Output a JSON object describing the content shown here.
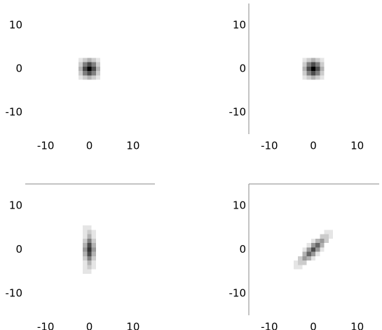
{
  "chart_data": [
    {
      "type": "heatmap",
      "color": "#000000",
      "spines": [],
      "x": [
        -5,
        -4,
        -3,
        -2,
        -1,
        0,
        1,
        2,
        3,
        4,
        5
      ],
      "y": [
        -5,
        -4,
        -3,
        -2,
        -1,
        0,
        1,
        2,
        3,
        4,
        5
      ],
      "z": [
        [
          0,
          0,
          0,
          0,
          0,
          0,
          0,
          0,
          0,
          0,
          0
        ],
        [
          0,
          0,
          0,
          0,
          0,
          0,
          0,
          0,
          0,
          0,
          0
        ],
        [
          0,
          0,
          0,
          0,
          0,
          0,
          0,
          0,
          0,
          0,
          0
        ],
        [
          0,
          0,
          0,
          0.1,
          0.2,
          0.3,
          0.2,
          0.1,
          0,
          0,
          0
        ],
        [
          0,
          0,
          0,
          0.2,
          0.5,
          0.7,
          0.5,
          0.2,
          0,
          0,
          0
        ],
        [
          0,
          0,
          0,
          0.3,
          0.7,
          1,
          0.7,
          0.3,
          0,
          0,
          0
        ],
        [
          0,
          0,
          0,
          0.2,
          0.5,
          0.7,
          0.5,
          0.2,
          0,
          0,
          0
        ],
        [
          0,
          0,
          0,
          0.1,
          0.2,
          0.3,
          0.2,
          0.1,
          0,
          0,
          0
        ],
        [
          0,
          0,
          0,
          0,
          0,
          0,
          0,
          0,
          0,
          0,
          0
        ],
        [
          0,
          0,
          0,
          0,
          0,
          0,
          0,
          0,
          0,
          0,
          0
        ],
        [
          0,
          0,
          0,
          0,
          0,
          0,
          0,
          0,
          0,
          0,
          0
        ]
      ],
      "xlim": [
        -15,
        15
      ],
      "ylim": [
        -15,
        15
      ],
      "xticks": [
        -10,
        0,
        10
      ],
      "yticks": [
        -10,
        0,
        10
      ]
    },
    {
      "type": "heatmap",
      "color": "#000000",
      "spines": [
        "left"
      ],
      "x": [
        -5,
        -4,
        -3,
        -2,
        -1,
        0,
        1,
        2,
        3,
        4,
        5
      ],
      "y": [
        -5,
        -4,
        -3,
        -2,
        -1,
        0,
        1,
        2,
        3,
        4,
        5
      ],
      "z": [
        [
          0,
          0,
          0,
          0,
          0,
          0,
          0,
          0,
          0,
          0,
          0
        ],
        [
          0,
          0,
          0,
          0,
          0,
          0,
          0,
          0,
          0,
          0,
          0
        ],
        [
          0,
          0,
          0,
          0,
          0,
          0,
          0,
          0,
          0,
          0,
          0
        ],
        [
          0,
          0,
          0,
          0.1,
          0.2,
          0.3,
          0.2,
          0.1,
          0,
          0,
          0
        ],
        [
          0,
          0,
          0,
          0.2,
          0.5,
          0.7,
          0.5,
          0.2,
          0,
          0,
          0
        ],
        [
          0,
          0,
          0,
          0.3,
          0.7,
          1,
          0.7,
          0.3,
          0,
          0,
          0
        ],
        [
          0,
          0,
          0,
          0.2,
          0.5,
          0.7,
          0.5,
          0.2,
          0,
          0,
          0
        ],
        [
          0,
          0,
          0,
          0.1,
          0.2,
          0.3,
          0.2,
          0.1,
          0,
          0,
          0
        ],
        [
          0,
          0,
          0,
          0,
          0,
          0,
          0,
          0,
          0,
          0,
          0
        ],
        [
          0,
          0,
          0,
          0,
          0,
          0,
          0,
          0,
          0,
          0,
          0
        ],
        [
          0,
          0,
          0,
          0,
          0,
          0,
          0,
          0,
          0,
          0,
          0
        ]
      ],
      "xlim": [
        -15,
        15
      ],
      "ylim": [
        -15,
        15
      ],
      "xticks": [
        -10,
        0,
        10
      ],
      "yticks": [
        -10,
        0,
        10
      ]
    },
    {
      "type": "heatmap",
      "color": "#000000",
      "spines": [
        "top"
      ],
      "x": [
        -5,
        -4,
        -3,
        -2,
        -1,
        0,
        1,
        2,
        3,
        4,
        5
      ],
      "y": [
        -5,
        -4,
        -3,
        -2,
        -1,
        0,
        1,
        2,
        3,
        4,
        5
      ],
      "z": [
        [
          0,
          0,
          0,
          0,
          0.1,
          0.1,
          0,
          0,
          0,
          0,
          0
        ],
        [
          0,
          0,
          0,
          0,
          0.1,
          0.2,
          0.1,
          0,
          0,
          0,
          0
        ],
        [
          0,
          0,
          0,
          0,
          0.1,
          0.3,
          0.1,
          0,
          0,
          0,
          0
        ],
        [
          0,
          0,
          0,
          0,
          0.2,
          0.5,
          0.2,
          0,
          0,
          0,
          0
        ],
        [
          0,
          0,
          0,
          0,
          0.3,
          0.7,
          0.3,
          0,
          0,
          0,
          0
        ],
        [
          0,
          0,
          0,
          0,
          0.4,
          0.8,
          0.4,
          0,
          0,
          0,
          0
        ],
        [
          0,
          0,
          0,
          0,
          0.3,
          0.7,
          0.3,
          0,
          0,
          0,
          0
        ],
        [
          0,
          0,
          0,
          0,
          0.2,
          0.5,
          0.2,
          0,
          0,
          0,
          0
        ],
        [
          0,
          0,
          0,
          0,
          0.1,
          0.3,
          0.1,
          0,
          0,
          0,
          0
        ],
        [
          0,
          0,
          0,
          0,
          0.1,
          0.2,
          0.1,
          0,
          0,
          0,
          0
        ],
        [
          0,
          0,
          0,
          0,
          0.1,
          0.1,
          0,
          0,
          0,
          0,
          0
        ]
      ],
      "xlim": [
        -15,
        15
      ],
      "ylim": [
        -15,
        15
      ],
      "xticks": [
        -10,
        0,
        10
      ],
      "yticks": [
        -10,
        0,
        10
      ]
    },
    {
      "type": "heatmap",
      "color": "#000000",
      "spines": [
        "top",
        "left"
      ],
      "x": [
        -5,
        -4,
        -3,
        -2,
        -1,
        0,
        1,
        2,
        3,
        4,
        5
      ],
      "y": [
        -5,
        -4,
        -3,
        -2,
        -1,
        0,
        1,
        2,
        3,
        4,
        5
      ],
      "z": [
        [
          0,
          0,
          0,
          0,
          0,
          0,
          0,
          0,
          0,
          0,
          0
        ],
        [
          0,
          0.1,
          0.1,
          0,
          0,
          0,
          0,
          0,
          0,
          0,
          0
        ],
        [
          0,
          0.1,
          0.2,
          0.2,
          0,
          0,
          0,
          0,
          0,
          0,
          0
        ],
        [
          0,
          0,
          0.2,
          0.4,
          0.3,
          0.1,
          0,
          0,
          0,
          0,
          0
        ],
        [
          0,
          0,
          0,
          0.3,
          0.6,
          0.4,
          0.1,
          0,
          0,
          0,
          0
        ],
        [
          0,
          0,
          0,
          0.1,
          0.4,
          0.7,
          0.4,
          0.1,
          0,
          0,
          0
        ],
        [
          0,
          0,
          0,
          0,
          0.1,
          0.4,
          0.6,
          0.3,
          0,
          0,
          0
        ],
        [
          0,
          0,
          0,
          0,
          0,
          0.1,
          0.3,
          0.4,
          0.2,
          0,
          0
        ],
        [
          0,
          0,
          0,
          0,
          0,
          0,
          0,
          0.2,
          0.2,
          0.1,
          0
        ],
        [
          0,
          0,
          0,
          0,
          0,
          0,
          0,
          0,
          0.1,
          0.1,
          0
        ],
        [
          0,
          0,
          0,
          0,
          0,
          0,
          0,
          0,
          0,
          0,
          0
        ]
      ],
      "xlim": [
        -15,
        15
      ],
      "ylim": [
        -15,
        15
      ],
      "xticks": [
        -10,
        0,
        10
      ],
      "yticks": [
        -10,
        0,
        10
      ]
    }
  ]
}
